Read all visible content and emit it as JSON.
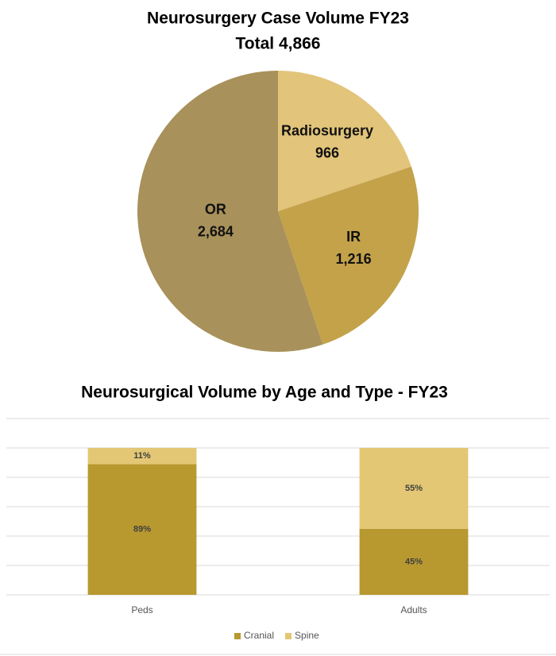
{
  "chart_data": [
    {
      "type": "pie",
      "title": "Neurosurgery Case Volume FY23",
      "subtitle": "Total 4,866",
      "categories": [
        "Radiosurgery",
        "IR",
        "OR"
      ],
      "values": [
        966,
        1216,
        2684
      ],
      "value_labels": [
        "966",
        "1,216",
        "2,684"
      ],
      "colors": [
        "#e2c47a",
        "#c3a24a",
        "#a8915a"
      ]
    },
    {
      "type": "stacked_bar",
      "title": "Neurosurgical Volume by Age and Type - FY23",
      "categories": [
        "Peds",
        "Adults"
      ],
      "series": [
        {
          "name": "Cranial",
          "color": "#b8992f",
          "values": [
            89,
            45
          ],
          "value_labels": [
            "89%",
            "45%"
          ]
        },
        {
          "name": "Spine",
          "color": "#e3c774",
          "values": [
            11,
            55
          ],
          "value_labels": [
            "11%",
            "55%"
          ]
        }
      ],
      "ylim": [
        0,
        120
      ],
      "yticks": [
        0,
        20,
        40,
        60,
        80,
        100,
        120
      ],
      "grid": true,
      "legend": "bottom"
    }
  ]
}
